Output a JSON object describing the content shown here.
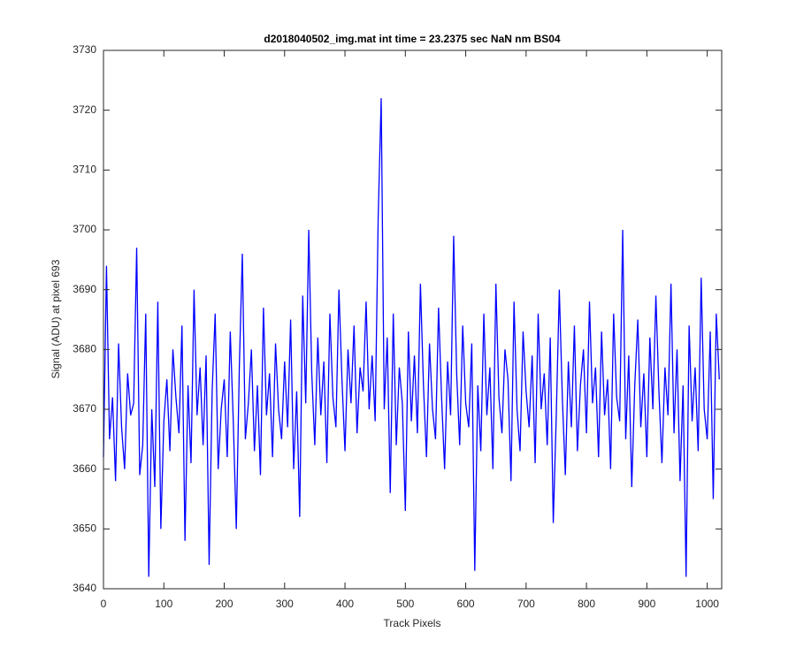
{
  "chart_data": {
    "type": "line",
    "title": "d2018040502_img.mat int time = 23.2375 sec  NaN nm BS04",
    "xlabel": "Track Pixels",
    "ylabel": "Signal (ADU) at pixel 693",
    "color": "#0000ff",
    "xlim": [
      0,
      1024
    ],
    "ylim": [
      3640,
      3730
    ],
    "xticks": [
      0,
      100,
      200,
      300,
      400,
      500,
      600,
      700,
      800,
      900,
      1000
    ],
    "yticks": [
      3640,
      3650,
      3660,
      3670,
      3680,
      3690,
      3700,
      3710,
      3720,
      3730
    ],
    "grid": false,
    "x": [
      0,
      5,
      10,
      15,
      20,
      25,
      30,
      35,
      40,
      45,
      50,
      55,
      60,
      65,
      70,
      75,
      80,
      85,
      90,
      95,
      100,
      105,
      110,
      115,
      120,
      125,
      130,
      135,
      140,
      145,
      150,
      155,
      160,
      165,
      170,
      175,
      180,
      185,
      190,
      195,
      200,
      205,
      210,
      215,
      220,
      225,
      230,
      235,
      240,
      245,
      250,
      255,
      260,
      265,
      270,
      275,
      280,
      285,
      290,
      295,
      300,
      305,
      310,
      315,
      320,
      325,
      330,
      335,
      340,
      345,
      350,
      355,
      360,
      365,
      370,
      375,
      380,
      385,
      390,
      395,
      400,
      405,
      410,
      415,
      420,
      425,
      430,
      435,
      440,
      445,
      450,
      455,
      460,
      465,
      470,
      475,
      480,
      485,
      490,
      495,
      500,
      505,
      510,
      515,
      520,
      525,
      530,
      535,
      540,
      545,
      550,
      555,
      560,
      565,
      570,
      575,
      580,
      585,
      590,
      595,
      600,
      605,
      610,
      615,
      620,
      625,
      630,
      635,
      640,
      645,
      650,
      655,
      660,
      665,
      670,
      675,
      680,
      685,
      690,
      695,
      700,
      705,
      710,
      715,
      720,
      725,
      730,
      735,
      740,
      745,
      750,
      755,
      760,
      765,
      770,
      775,
      780,
      785,
      790,
      795,
      800,
      805,
      810,
      815,
      820,
      825,
      830,
      835,
      840,
      845,
      850,
      855,
      860,
      865,
      870,
      875,
      880,
      885,
      890,
      895,
      900,
      905,
      910,
      915,
      920,
      925,
      930,
      935,
      940,
      945,
      950,
      955,
      960,
      965,
      970,
      975,
      980,
      985,
      990,
      995,
      1000,
      1005,
      1010,
      1015,
      1020
    ],
    "values": [
      3662,
      3694,
      3665,
      3672,
      3658,
      3681,
      3667,
      3660,
      3676,
      3669,
      3671,
      3697,
      3659,
      3664,
      3686,
      3642,
      3670,
      3657,
      3688,
      3650,
      3668,
      3675,
      3663,
      3680,
      3672,
      3666,
      3684,
      3648,
      3674,
      3661,
      3690,
      3669,
      3677,
      3664,
      3679,
      3644,
      3673,
      3686,
      3660,
      3670,
      3675,
      3662,
      3683,
      3668,
      3650,
      3677,
      3696,
      3665,
      3671,
      3680,
      3663,
      3674,
      3659,
      3687,
      3669,
      3676,
      3662,
      3681,
      3670,
      3665,
      3678,
      3667,
      3685,
      3660,
      3673,
      3652,
      3689,
      3671,
      3700,
      3676,
      3664,
      3682,
      3669,
      3678,
      3661,
      3686,
      3672,
      3667,
      3690,
      3675,
      3663,
      3680,
      3671,
      3684,
      3666,
      3677,
      3673,
      3688,
      3670,
      3679,
      3668,
      3702,
      3722,
      3670,
      3682,
      3656,
      3686,
      3664,
      3677,
      3671,
      3653,
      3683,
      3668,
      3679,
      3666,
      3691,
      3674,
      3662,
      3681,
      3670,
      3665,
      3687,
      3672,
      3660,
      3678,
      3669,
      3699,
      3676,
      3664,
      3684,
      3671,
      3667,
      3681,
      3643,
      3674,
      3663,
      3686,
      3669,
      3677,
      3660,
      3691,
      3672,
      3666,
      3680,
      3675,
      3658,
      3688,
      3670,
      3663,
      3683,
      3673,
      3667,
      3679,
      3661,
      3686,
      3670,
      3676,
      3664,
      3682,
      3651,
      3669,
      3690,
      3672,
      3659,
      3678,
      3667,
      3684,
      3663,
      3674,
      3680,
      3666,
      3688,
      3671,
      3677,
      3662,
      3683,
      3669,
      3675,
      3660,
      3686,
      3672,
      3668,
      3700,
      3665,
      3679,
      3657,
      3674,
      3685,
      3667,
      3676,
      3662,
      3682,
      3670,
      3689,
      3673,
      3661,
      3677,
      3669,
      3691,
      3666,
      3680,
      3658,
      3674,
      3642,
      3684,
      3668,
      3677,
      3663,
      3692,
      3670,
      3665,
      3683,
      3655,
      3686,
      3675
    ]
  }
}
